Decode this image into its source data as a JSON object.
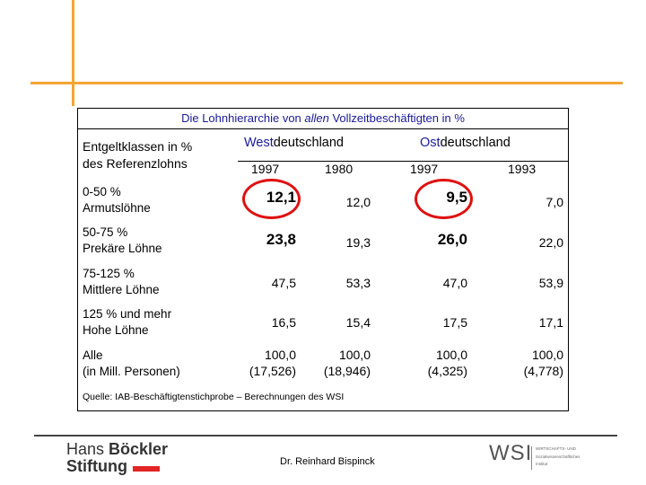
{
  "table": {
    "title_before": "Die Lohnhierarchie von ",
    "title_em": "allen",
    "title_after": " Vollzeitbeschäftigten in %",
    "header_label_1": "Entgeltklassen in %",
    "header_label_2": "des Referenzlohns",
    "west_prefix": "West",
    "west_suffix": "deutschland",
    "east_prefix": "Ost",
    "east_suffix": "deutschland",
    "years": [
      "1997",
      "1980",
      "1997",
      "1993"
    ],
    "rows": [
      {
        "range": "0-50 %",
        "name": "Armutslöhne",
        "values": [
          "12,1",
          "12,0",
          "9,5",
          "7,0"
        ]
      },
      {
        "range": "50-75 %",
        "name": "Prekäre Löhne",
        "values": [
          "23,8",
          "19,3",
          "26,0",
          "22,0"
        ]
      },
      {
        "range": "75-125 %",
        "name": "Mittlere Löhne",
        "values": [
          "47,5",
          "53,3",
          "47,0",
          "53,9"
        ]
      },
      {
        "range": "125 % und mehr",
        "name": "Hohe Löhne",
        "values": [
          "16,5",
          "15,4",
          "17,5",
          "17,1"
        ]
      },
      {
        "range": "Alle",
        "name": "(in Mill. Personen)",
        "values": [
          "100,0",
          "100,0",
          "100,0",
          "100,0"
        ],
        "counts": [
          "(17,526)",
          "(18,946)",
          "(4,325)",
          "(4,778)"
        ]
      }
    ],
    "source": "Quelle: IAB-Beschäftigtenstichprobe – Berechnungen des WSI"
  },
  "footer": {
    "logo_line1_a": "Hans ",
    "logo_line1_b": "Böckler",
    "logo_line2": "Stiftung",
    "author": "Dr. Reinhard Bispinck",
    "wsi": "WSI",
    "wsi_sub_1": "WIRTSCHAFTS- UND",
    "wsi_sub_2": "Sozialwissenschaftliches",
    "wsi_sub_3": "Institut"
  },
  "colors": {
    "accent": "#f5a531",
    "title_blue": "#1a1a99",
    "highlight_red": "#e01010"
  }
}
